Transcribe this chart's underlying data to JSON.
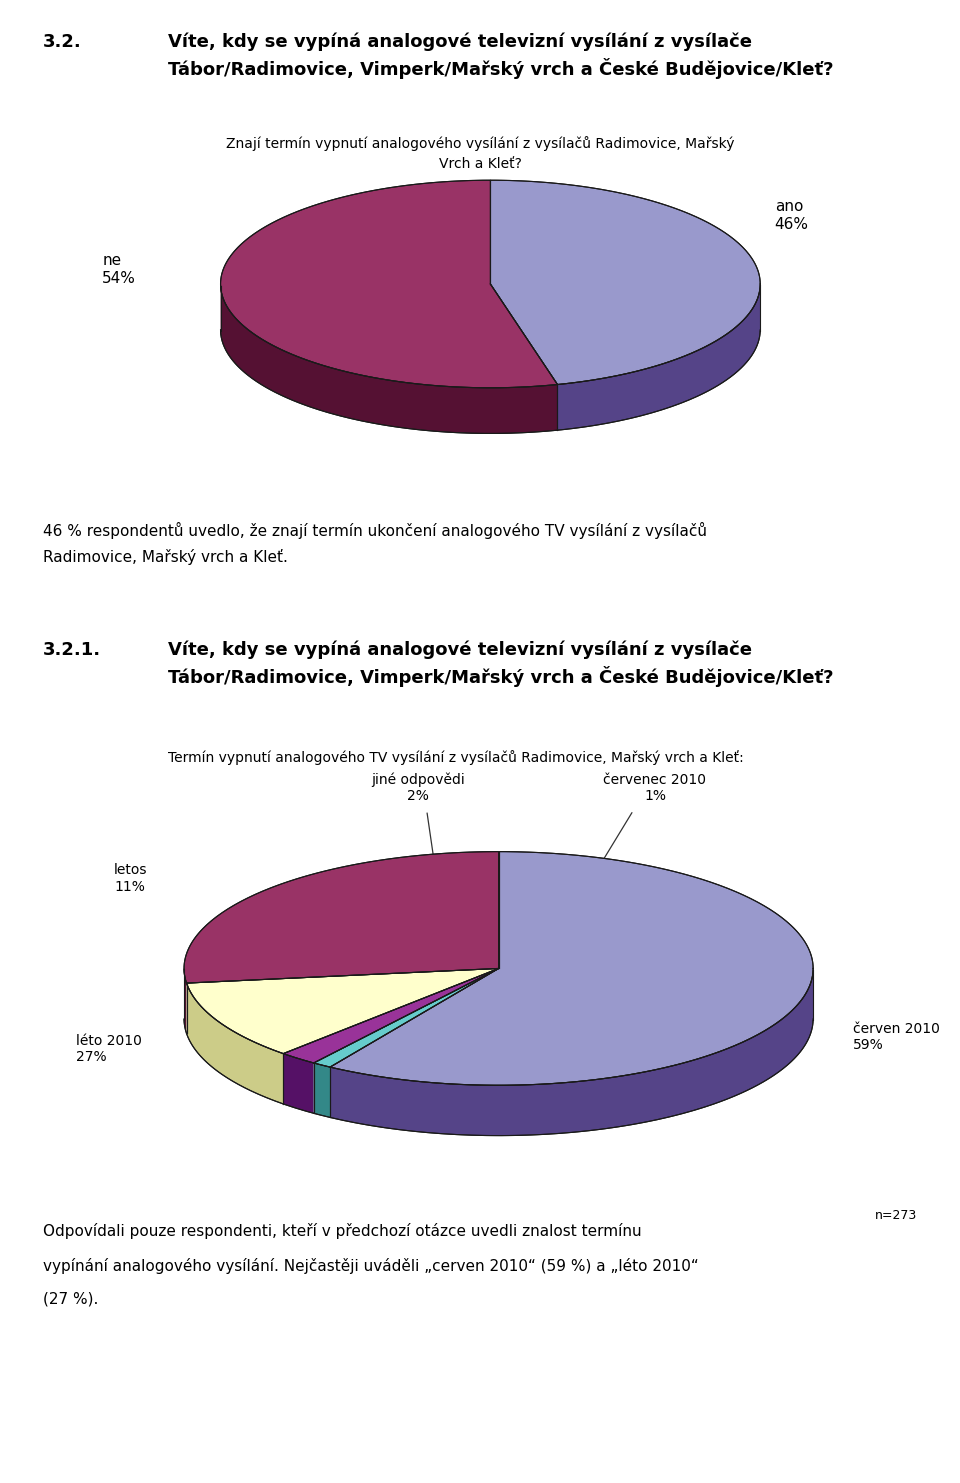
{
  "title1_num": "3.2.",
  "title1_text": "Víte, kdy se vypíná analogové televizní vysílání z vysílače\nTábor/Radimovice, Vimperk/Mařský vrch a České Budějovice/Kleť?",
  "subtitle1": "Znají termín vypnutí analogového vysílání z vysílačů Radimovice, Mařský\nVrch a Kleť?",
  "pie1_values": [
    46,
    54
  ],
  "pie1_colors_top": [
    "#9999cc",
    "#993366"
  ],
  "pie1_colors_side": [
    "#554488",
    "#551133"
  ],
  "pie1_label_ano": "ano\n46%",
  "pie1_label_ne": "ne\n54%",
  "paragraph_text": "46 % respondentů uvedlo, že znají termín ukončení analogového TV vysílání z vysílačů\nRadimovice, Mařský vrch a Kleť.",
  "title2_num": "3.2.1.",
  "title2_text": "Víte, kdy se vypíná analogové televizní vysílání z vysílače\nTábor/Radimovice, Vimperk/Mařský vrch a České Budějovice/Kleť?",
  "subtitle2": "Termín vypnutí analogového TV vysílání z vysílačů Radimovice, Mařský vrch a Kleť:",
  "pie2_values": [
    59,
    1,
    2,
    11,
    27
  ],
  "pie2_colors_top": [
    "#9999cc",
    "#66cccc",
    "#993399",
    "#ffffcc",
    "#993366"
  ],
  "pie2_colors_side": [
    "#554488",
    "#338888",
    "#551166",
    "#cccc88",
    "#551133"
  ],
  "pie2_labels": [
    "červen 2010\n59%",
    "červenec 2010\n1%",
    "jiné odpovědi\n2%",
    "letos\n11%",
    "léto 2010\n27%"
  ],
  "footnote": "n=273",
  "bottom_text1": "Odpovídali pouze respondenti, kteří v předchozí otázce uvedli znalost termínu",
  "bottom_text2": "vypínání analogového vysílání. Nejčastěji uváděli „cerven 2010“ (59 %) a „léto 2010“",
  "bottom_text3": "(27 %)."
}
